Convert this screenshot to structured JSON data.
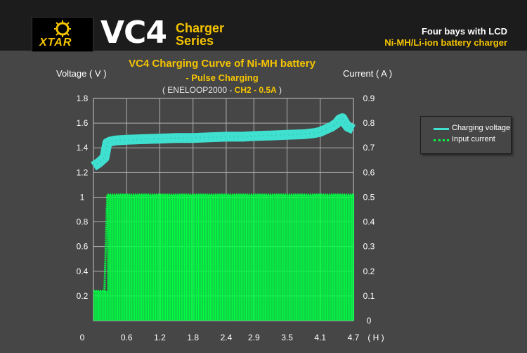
{
  "header": {
    "brand": "XTAR",
    "model": "VC4",
    "series_line1": "Charger",
    "series_line2": "Series",
    "tagline1": "Four bays with LCD",
    "tagline2": "Ni-MH/Li-ion battery charger"
  },
  "chart_data": {
    "type": "line",
    "title": "VC4 Charging Curve of Ni-MH battery",
    "subtitle": "- Pulse Charging",
    "note_prefix": "( ENELOOP2000 - ",
    "note_highlight": "CH2 - 0.5A",
    "note_suffix": " )",
    "ylabel_left": "Voltage ( V )",
    "ylabel_right": "Current ( A )",
    "xlabel": "( H )",
    "x_tick_labels": [
      "0",
      "0.6",
      "1.2",
      "1.8",
      "2.4",
      "2.9",
      "3.5",
      "4.1",
      "4.7"
    ],
    "x_tick_values": [
      0,
      0.6,
      1.2,
      1.8,
      2.4,
      2.9,
      3.5,
      4.1,
      4.7
    ],
    "xlim": [
      0,
      4.7
    ],
    "left_axis": {
      "ticks": [
        "1.8",
        "1.6",
        "1.4",
        "1.2",
        "1",
        "0.8",
        "0.6",
        "0.4",
        "0.2"
      ],
      "ylim": [
        0,
        1.8
      ]
    },
    "right_axis": {
      "ticks": [
        "0.9",
        "0.8",
        "0.7",
        "0.6",
        "0.5",
        "0.4",
        "0.3",
        "0.2",
        "0.1",
        "0"
      ],
      "ylim": [
        0,
        0.9
      ]
    },
    "grid": true,
    "legend_position": "right",
    "series": [
      {
        "name": "Charging voltage",
        "axis": "left",
        "color": "#40e0d0",
        "x": [
          0,
          0.1,
          0.2,
          0.25,
          0.3,
          0.4,
          0.6,
          0.9,
          1.2,
          1.5,
          1.8,
          2.1,
          2.4,
          2.7,
          2.9,
          3.2,
          3.5,
          3.8,
          4.0,
          4.1,
          4.2,
          4.3,
          4.4,
          4.45,
          4.5,
          4.55,
          4.6,
          4.7
        ],
        "values": [
          1.25,
          1.28,
          1.32,
          1.44,
          1.45,
          1.46,
          1.465,
          1.47,
          1.475,
          1.48,
          1.48,
          1.485,
          1.49,
          1.49,
          1.495,
          1.5,
          1.505,
          1.51,
          1.52,
          1.53,
          1.55,
          1.57,
          1.6,
          1.63,
          1.64,
          1.6,
          1.57,
          1.55
        ]
      },
      {
        "name": "Input current",
        "axis": "right",
        "color": "#00ff44",
        "x": [
          0,
          0.2,
          0.25,
          4.65,
          4.7
        ],
        "values": [
          0.12,
          0.12,
          0.51,
          0.51,
          0.51
        ],
        "pulse_off_value": 0
      }
    ]
  }
}
